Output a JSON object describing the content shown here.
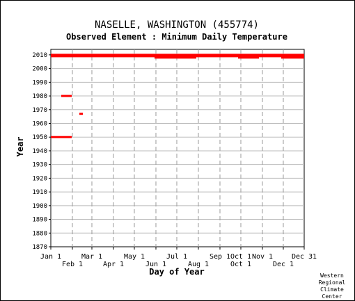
{
  "chart_data": {
    "type": "timeline",
    "title": "NASELLE, WASHINGTON   (455774)",
    "subtitle": "Observed Element : Minimum Daily Temperature",
    "xlabel": "Day of Year",
    "ylabel": "Year",
    "credit": [
      "Western",
      "Regional",
      "Climate",
      "Center"
    ],
    "xlim": [
      1,
      365
    ],
    "ylim": [
      1870,
      2014
    ],
    "y_ticks": [
      1870,
      1880,
      1890,
      1900,
      1910,
      1920,
      1930,
      1940,
      1950,
      1960,
      1970,
      1980,
      1990,
      2000,
      2010
    ],
    "x_ticks_upper": [
      {
        "day": 1,
        "label": "Jan 1"
      },
      {
        "day": 60,
        "label": "Mar 1"
      },
      {
        "day": 121,
        "label": "May 1"
      },
      {
        "day": 182,
        "label": "Jul 1"
      },
      {
        "day": 244,
        "label": "Sep 1"
      },
      {
        "day": 274,
        "label": "Oct 1"
      },
      {
        "day": 305,
        "label": "Nov 1"
      },
      {
        "day": 365,
        "label": "Dec 31"
      }
    ],
    "x_ticks_lower": [
      {
        "day": 32,
        "label": "Feb 1"
      },
      {
        "day": 91,
        "label": "Apr 1"
      },
      {
        "day": 152,
        "label": "Jun 1"
      },
      {
        "day": 213,
        "label": "Aug 1"
      },
      {
        "day": 274,
        "label": "Oct 1"
      },
      {
        "day": 335,
        "label": "Dec 1"
      }
    ],
    "series": [
      {
        "color": "#ff0000",
        "segments": [
          {
            "year": 1950,
            "start_day": 1,
            "end_day": 31
          },
          {
            "year": 1980,
            "start_day": 16,
            "end_day": 31
          },
          {
            "year": 1967,
            "start_day": 42,
            "end_day": 47
          },
          {
            "year": 2010,
            "start_day": 1,
            "end_day": 365
          },
          {
            "year": 2009,
            "start_day": 1,
            "end_day": 365
          },
          {
            "year": 2008,
            "start_day": 150,
            "end_day": 210
          },
          {
            "year": 2008,
            "start_day": 270,
            "end_day": 300
          },
          {
            "year": 2008,
            "start_day": 332,
            "end_day": 365
          }
        ]
      }
    ],
    "grid": true
  }
}
